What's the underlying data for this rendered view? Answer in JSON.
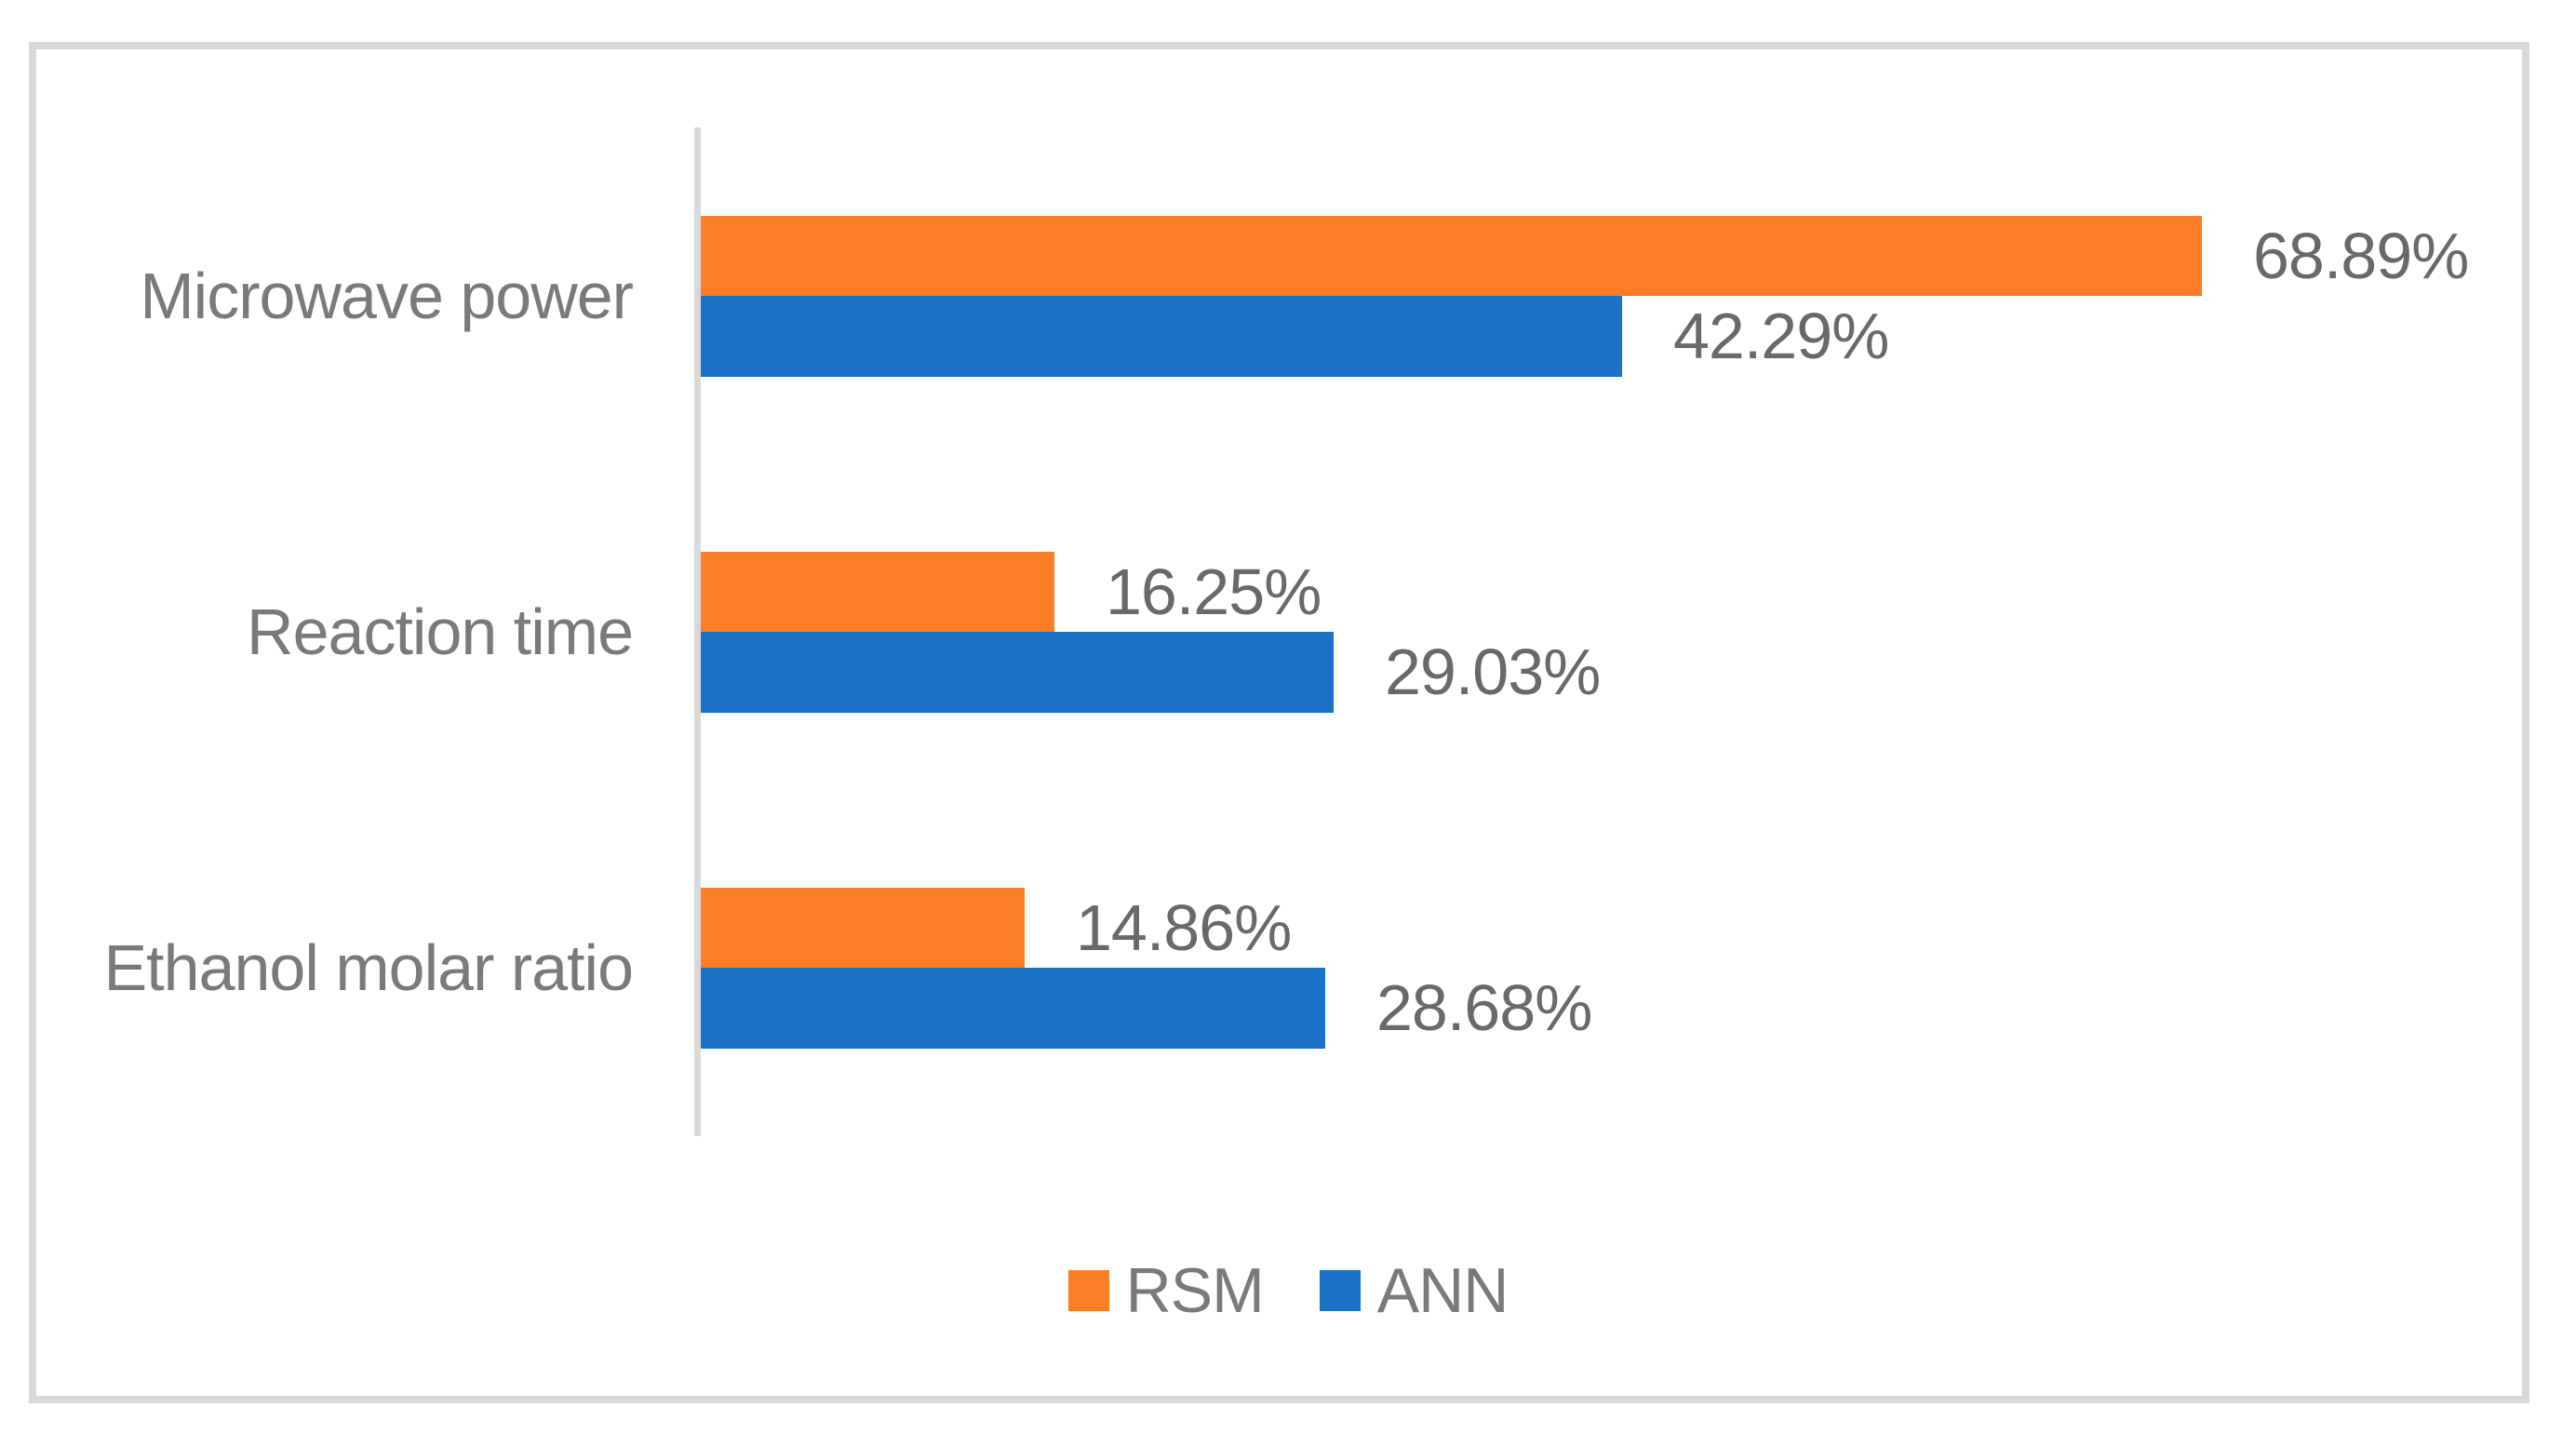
{
  "chart_data": {
    "type": "bar",
    "orientation": "horizontal",
    "title": "",
    "xlabel": "",
    "ylabel": "",
    "categories": [
      "Microwave power",
      "Reaction time",
      "Ethanol molar ratio"
    ],
    "series": [
      {
        "name": "RSM",
        "color": "#FB7D26",
        "values": [
          68.89,
          16.25,
          14.86
        ],
        "labels": [
          "68.89%",
          "16.25%",
          "14.86%"
        ]
      },
      {
        "name": "ANN",
        "color": "#1B73C8",
        "values": [
          42.29,
          29.03,
          28.68
        ],
        "labels": [
          "42.29%",
          "29.03%",
          "28.68%"
        ]
      }
    ],
    "xlim": [
      0,
      84
    ],
    "grid": false,
    "data_labels": true,
    "legend_position": "bottom"
  },
  "legend": {
    "items": [
      {
        "label": "RSM",
        "color": "#FB7D26"
      },
      {
        "label": "ANN",
        "color": "#1B73C8"
      }
    ]
  },
  "colors": {
    "background": "#FFFFFF",
    "frame_border": "#D9D9D9",
    "axis_line": "#D9D9D9",
    "category_text": "#7A7A7A",
    "data_label_text": "#696969",
    "legend_text": "#7A7A7A"
  }
}
